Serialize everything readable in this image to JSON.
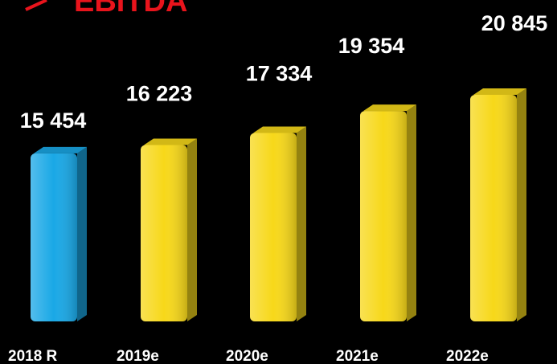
{
  "chart_data": {
    "type": "bar",
    "title": "EBITDA",
    "categories": [
      "2018 R",
      "2019e",
      "2020e",
      "2021e",
      "2022e"
    ],
    "values": [
      15454,
      16223,
      17334,
      19354,
      20845
    ],
    "value_labels": [
      "15 454",
      "16 223",
      "17 334",
      "19 354",
      "20 845"
    ],
    "colors": [
      "#1aa8e6",
      "#f7d81a",
      "#f7d81a",
      "#f7d81a",
      "#f7d81a"
    ]
  }
}
